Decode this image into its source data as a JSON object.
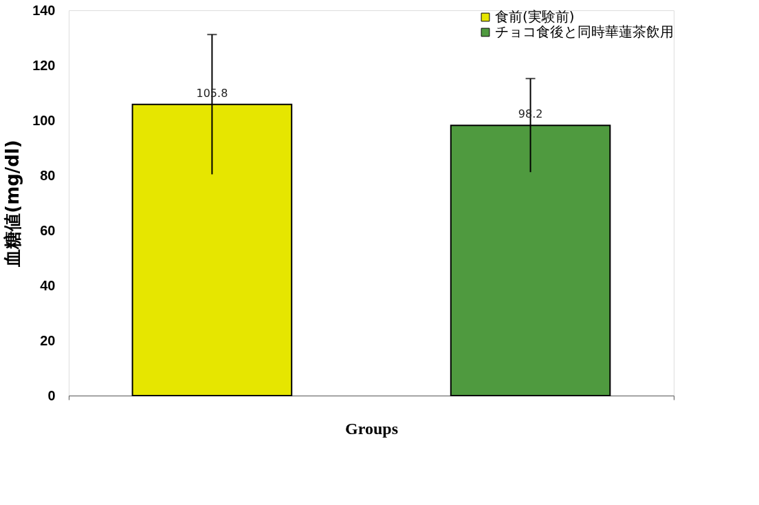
{
  "chart_data": {
    "type": "bar",
    "xlabel": "Groups",
    "ylabel": "血糖値(mg/dl)",
    "categories": [
      null
    ],
    "series": [
      {
        "name": "食前(実験前)",
        "color": "#e6e600",
        "values": [
          105.8
        ],
        "errors": [
          25.4
        ]
      },
      {
        "name": "チョコ食後と同時華蓮茶飲用",
        "color": "#4f9a3f",
        "values": [
          98.2
        ],
        "errors": [
          17.0
        ]
      }
    ],
    "ylim": [
      0,
      140
    ],
    "yticks": [
      0,
      20,
      40,
      60,
      80,
      100,
      120,
      140
    ],
    "data_labels": true,
    "grid": false,
    "legend": "top right",
    "tick_labels": "y"
  }
}
